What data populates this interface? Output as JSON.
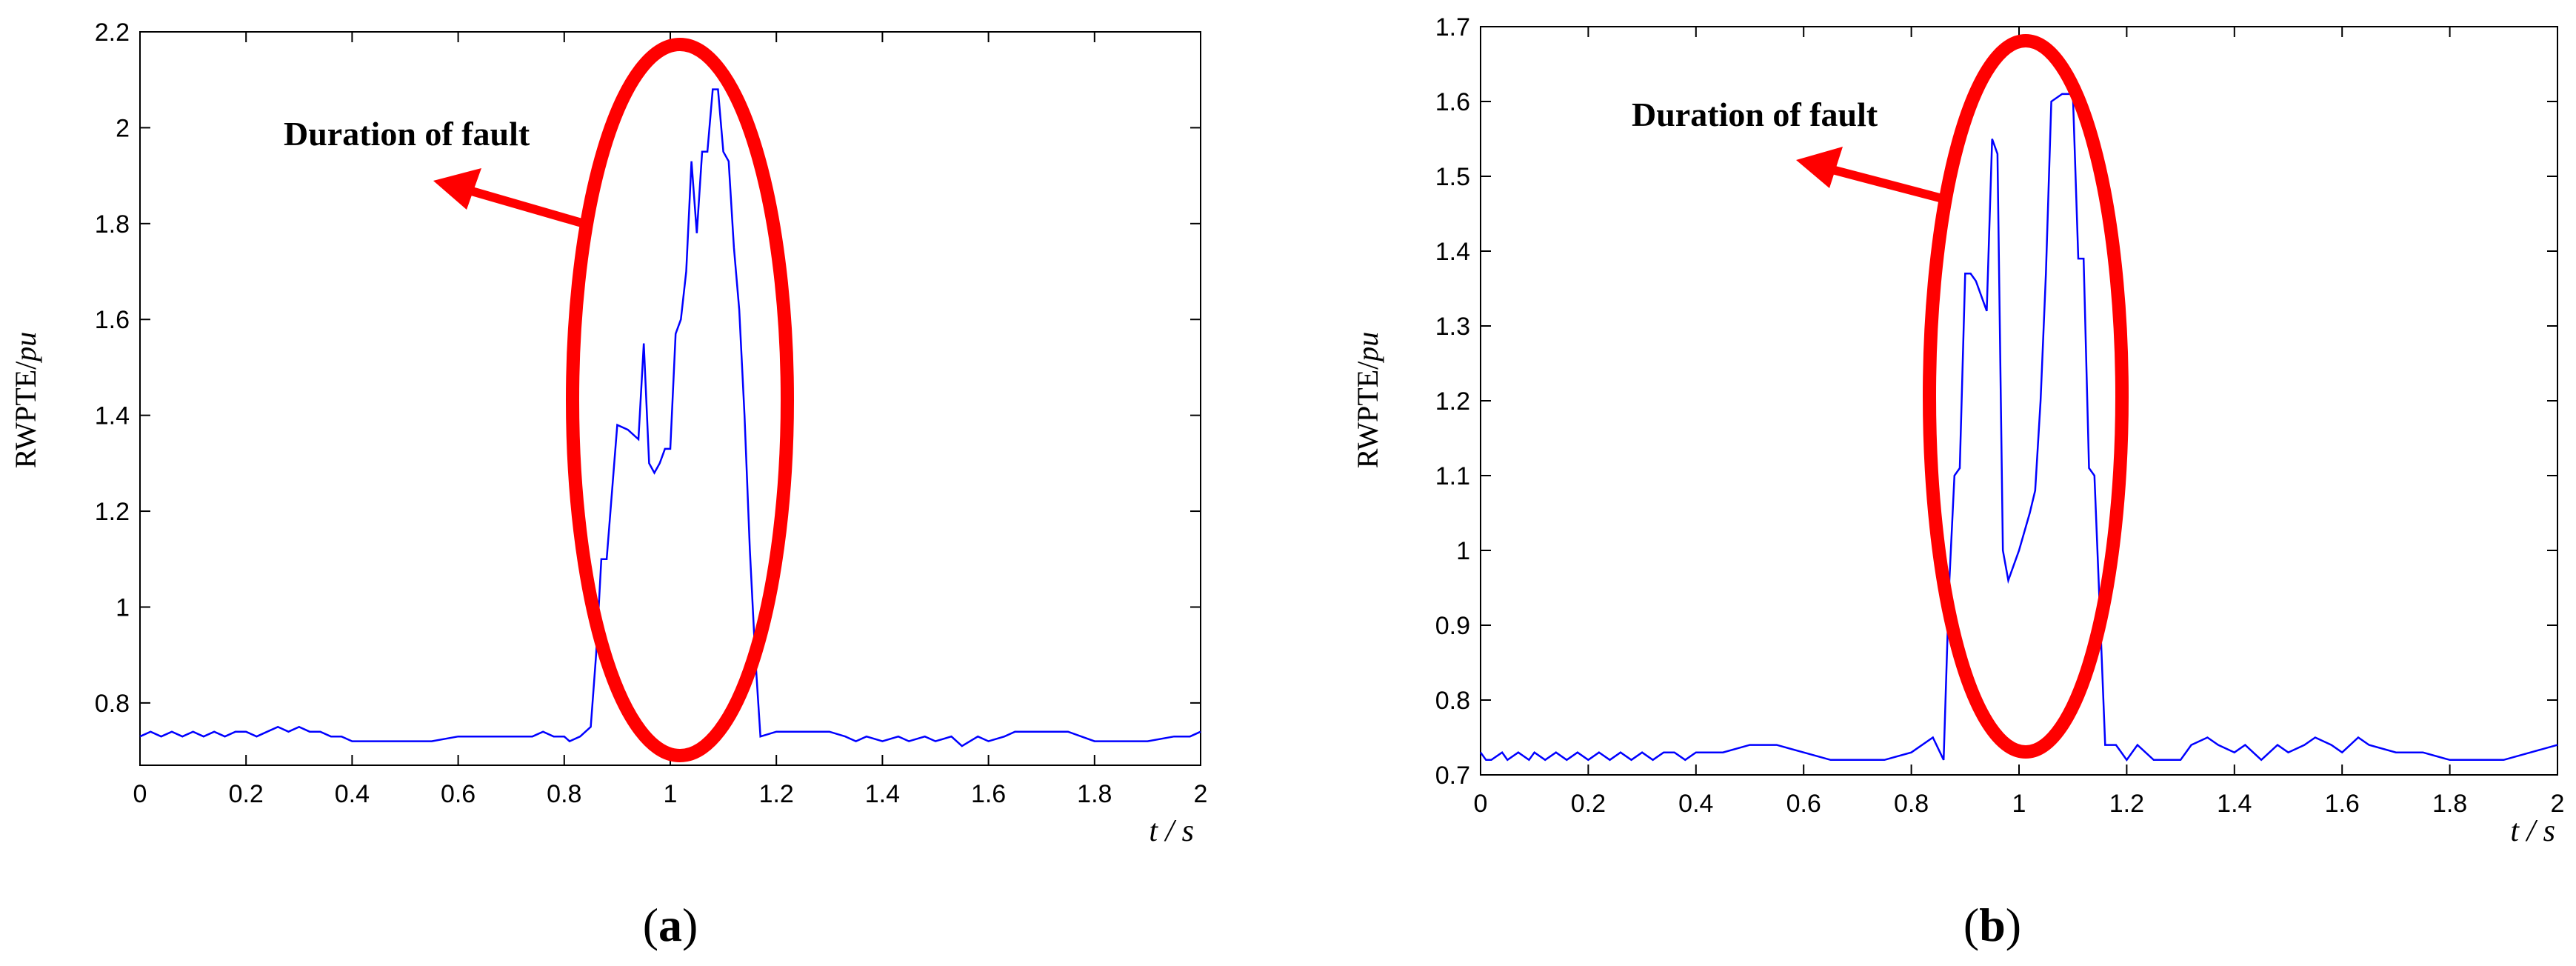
{
  "chart_data": [
    {
      "type": "line",
      "panel_label": "(a)",
      "panel_letter": "a",
      "ylabel_prefix": "RWPTE/",
      "ylabel_unit": "pu",
      "xlabel": "t / s",
      "xlim": [
        0,
        2
      ],
      "ylim": [
        0.67,
        2.2
      ],
      "xticks": [
        "0",
        "0.2",
        "0.4",
        "0.6",
        "0.8",
        "1",
        "1.2",
        "1.4",
        "1.6",
        "1.8",
        "2"
      ],
      "yticks": [
        {
          "v": 0.8,
          "t": "0.8"
        },
        {
          "v": 1.0,
          "t": "1"
        },
        {
          "v": 1.2,
          "t": "1.2"
        },
        {
          "v": 1.4,
          "t": "1.4"
        },
        {
          "v": 1.6,
          "t": "1.6"
        },
        {
          "v": 1.8,
          "t": "1.8"
        },
        {
          "v": 2.0,
          "t": "2"
        },
        {
          "v": 2.2,
          "t": "2.2"
        }
      ],
      "grid": false,
      "line_color": "#0000ff",
      "annotation": "Duration of fault",
      "annotation_color": "#ff0000",
      "series": [
        {
          "x": [
            0,
            0.02,
            0.04,
            0.06,
            0.08,
            0.1,
            0.12,
            0.14,
            0.16,
            0.18,
            0.2,
            0.22,
            0.24,
            0.26,
            0.28,
            0.3,
            0.32,
            0.34,
            0.36,
            0.38,
            0.4,
            0.45,
            0.5,
            0.55,
            0.6,
            0.65,
            0.7,
            0.74,
            0.76,
            0.78,
            0.8,
            0.81,
            0.83,
            0.85,
            0.86,
            0.87,
            0.88,
            0.9,
            0.92,
            0.94,
            0.95,
            0.96,
            0.97,
            0.98,
            0.99,
            1.0,
            1.01,
            1.02,
            1.03,
            1.04,
            1.05,
            1.06,
            1.07,
            1.08,
            1.09,
            1.1,
            1.11,
            1.12,
            1.13,
            1.14,
            1.15,
            1.16,
            1.17,
            1.2,
            1.25,
            1.3,
            1.33,
            1.35,
            1.37,
            1.4,
            1.43,
            1.45,
            1.48,
            1.5,
            1.53,
            1.55,
            1.58,
            1.6,
            1.63,
            1.65,
            1.7,
            1.75,
            1.8,
            1.85,
            1.9,
            1.95,
            1.98,
            2.0
          ],
          "y": [
            0.73,
            0.74,
            0.73,
            0.74,
            0.73,
            0.74,
            0.73,
            0.74,
            0.73,
            0.74,
            0.74,
            0.73,
            0.74,
            0.75,
            0.74,
            0.75,
            0.74,
            0.74,
            0.73,
            0.73,
            0.72,
            0.72,
            0.72,
            0.72,
            0.73,
            0.73,
            0.73,
            0.73,
            0.74,
            0.73,
            0.73,
            0.72,
            0.73,
            0.75,
            0.9,
            1.1,
            1.1,
            1.38,
            1.37,
            1.35,
            1.55,
            1.3,
            1.28,
            1.3,
            1.33,
            1.33,
            1.57,
            1.6,
            1.7,
            1.93,
            1.78,
            1.95,
            1.95,
            2.08,
            2.08,
            1.95,
            1.93,
            1.75,
            1.62,
            1.4,
            1.12,
            0.9,
            0.73,
            0.74,
            0.74,
            0.74,
            0.73,
            0.72,
            0.73,
            0.72,
            0.73,
            0.72,
            0.73,
            0.72,
            0.73,
            0.71,
            0.73,
            0.72,
            0.73,
            0.74,
            0.74,
            0.74,
            0.72,
            0.72,
            0.72,
            0.73,
            0.73,
            0.74
          ]
        }
      ]
    },
    {
      "type": "line",
      "panel_label": "(b)",
      "panel_letter": "b",
      "ylabel_prefix": "RWPTE/",
      "ylabel_unit": "pu",
      "xlabel": "t / s",
      "xlim": [
        0,
        2
      ],
      "ylim": [
        0.7,
        1.7
      ],
      "xticks": [
        "0",
        "0.2",
        "0.4",
        "0.6",
        "0.8",
        "1",
        "1.2",
        "1.4",
        "1.6",
        "1.8",
        "2"
      ],
      "yticks": [
        {
          "v": 0.7,
          "t": "0.7"
        },
        {
          "v": 0.8,
          "t": "0.8"
        },
        {
          "v": 0.9,
          "t": "0.9"
        },
        {
          "v": 1.0,
          "t": "1"
        },
        {
          "v": 1.1,
          "t": "1.1"
        },
        {
          "v": 1.2,
          "t": "1.2"
        },
        {
          "v": 1.3,
          "t": "1.3"
        },
        {
          "v": 1.4,
          "t": "1.4"
        },
        {
          "v": 1.5,
          "t": "1.5"
        },
        {
          "v": 1.6,
          "t": "1.6"
        },
        {
          "v": 1.7,
          "t": "1.7"
        }
      ],
      "grid": false,
      "line_color": "#0000ff",
      "annotation": "Duration of fault",
      "annotation_color": "#ff0000",
      "series": [
        {
          "x": [
            0,
            0.01,
            0.02,
            0.04,
            0.05,
            0.07,
            0.09,
            0.1,
            0.12,
            0.14,
            0.16,
            0.18,
            0.2,
            0.22,
            0.24,
            0.26,
            0.28,
            0.3,
            0.32,
            0.34,
            0.36,
            0.38,
            0.4,
            0.45,
            0.5,
            0.55,
            0.6,
            0.65,
            0.7,
            0.75,
            0.8,
            0.84,
            0.86,
            0.87,
            0.88,
            0.89,
            0.9,
            0.91,
            0.92,
            0.94,
            0.95,
            0.96,
            0.97,
            0.98,
            1.0,
            1.02,
            1.03,
            1.04,
            1.05,
            1.06,
            1.08,
            1.1,
            1.11,
            1.12,
            1.13,
            1.14,
            1.15,
            1.16,
            1.18,
            1.2,
            1.22,
            1.25,
            1.3,
            1.32,
            1.35,
            1.37,
            1.4,
            1.42,
            1.45,
            1.48,
            1.5,
            1.53,
            1.55,
            1.58,
            1.6,
            1.63,
            1.65,
            1.7,
            1.75,
            1.8,
            1.85,
            1.9,
            1.95,
            2.0
          ],
          "y": [
            0.73,
            0.72,
            0.72,
            0.73,
            0.72,
            0.73,
            0.72,
            0.73,
            0.72,
            0.73,
            0.72,
            0.73,
            0.72,
            0.73,
            0.72,
            0.73,
            0.72,
            0.73,
            0.72,
            0.73,
            0.73,
            0.72,
            0.73,
            0.73,
            0.74,
            0.74,
            0.73,
            0.72,
            0.72,
            0.72,
            0.73,
            0.75,
            0.72,
            0.95,
            1.1,
            1.11,
            1.37,
            1.37,
            1.36,
            1.32,
            1.55,
            1.53,
            1.0,
            0.96,
            1.0,
            1.05,
            1.08,
            1.2,
            1.37,
            1.6,
            1.61,
            1.61,
            1.39,
            1.39,
            1.11,
            1.1,
            0.92,
            0.74,
            0.74,
            0.72,
            0.74,
            0.72,
            0.72,
            0.74,
            0.75,
            0.74,
            0.73,
            0.74,
            0.72,
            0.74,
            0.73,
            0.74,
            0.75,
            0.74,
            0.73,
            0.75,
            0.74,
            0.73,
            0.73,
            0.72,
            0.72,
            0.72,
            0.73,
            0.74
          ]
        }
      ]
    }
  ]
}
